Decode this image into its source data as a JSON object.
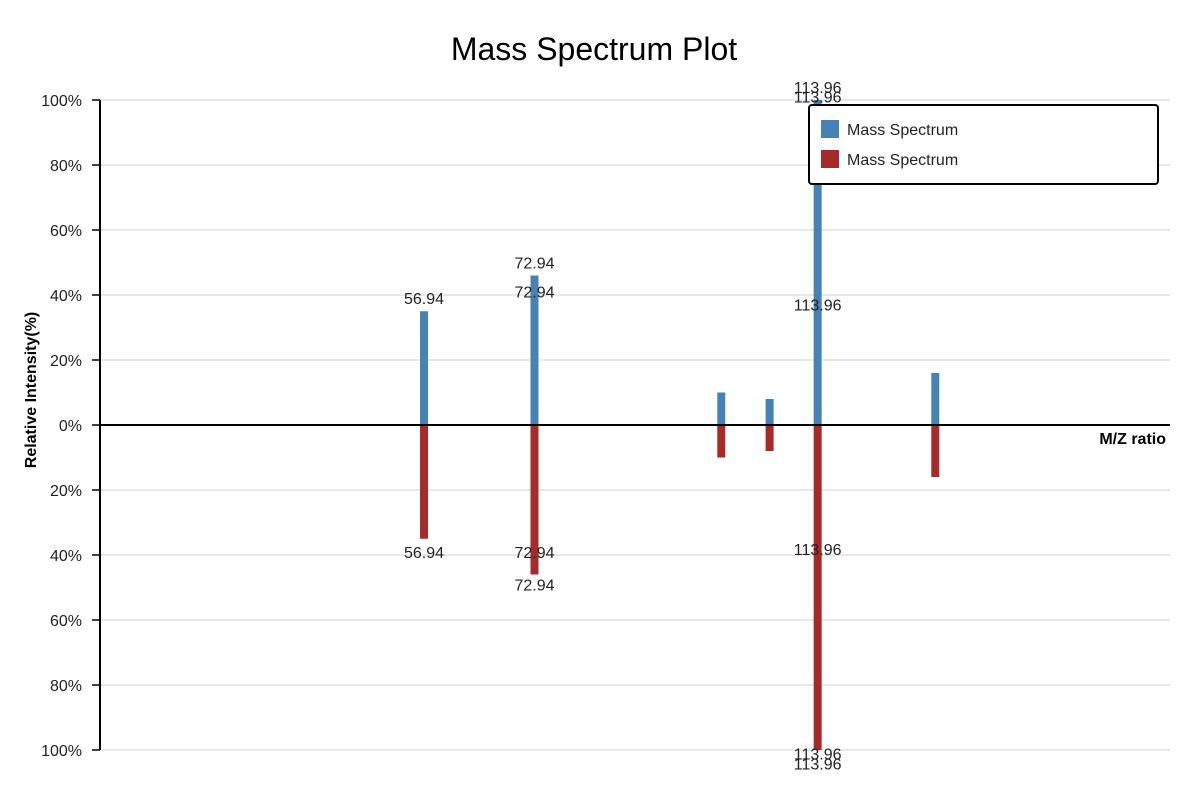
{
  "chart_data": {
    "type": "bar",
    "title": "Mass Spectrum Plot",
    "xlabel": "M/Z ratio",
    "ylabel": "Relative Intensity(%)",
    "ylim": [
      -100,
      100
    ],
    "y_ticks": [
      "100%",
      "80%",
      "60%",
      "40%",
      "20%",
      "0%",
      "20%",
      "40%",
      "60%",
      "80%",
      "100%"
    ],
    "y_tick_values": [
      100,
      80,
      60,
      40,
      20,
      0,
      -20,
      -40,
      -60,
      -80,
      -100
    ],
    "x_range": [
      10,
      165
    ],
    "grid": true,
    "legend_position": "top-right",
    "colors": {
      "up": "#4682b4",
      "down": "#a52a2a"
    },
    "series": [
      {
        "name": "Mass Spectrum",
        "direction": "up",
        "color": "#4682b4",
        "points": [
          {
            "x": 56.94,
            "y": 35
          },
          {
            "x": 72.94,
            "y": 46
          },
          {
            "x": 100.0,
            "y": 10
          },
          {
            "x": 107.0,
            "y": 8
          },
          {
            "x": 113.96,
            "y": 100
          },
          {
            "x": 131.0,
            "y": 16
          }
        ]
      },
      {
        "name": "Mass Spectrum",
        "direction": "down",
        "color": "#a52a2a",
        "points": [
          {
            "x": 56.94,
            "y": -35
          },
          {
            "x": 72.94,
            "y": -46
          },
          {
            "x": 100.0,
            "y": -10
          },
          {
            "x": 107.0,
            "y": -8
          },
          {
            "x": 113.96,
            "y": -100
          },
          {
            "x": 131.0,
            "y": -16
          }
        ]
      }
    ],
    "annotations": [
      {
        "text": "56.94",
        "x": 56.94,
        "y": 36,
        "side": "above"
      },
      {
        "text": "56.94",
        "x": 56.94,
        "y": -36,
        "side": "below"
      },
      {
        "text": "72.94",
        "x": 72.94,
        "y": 47,
        "side": "above"
      },
      {
        "text": "72.94",
        "x": 72.94,
        "y": 38,
        "side": "above"
      },
      {
        "text": "72.94",
        "x": 72.94,
        "y": -36,
        "side": "below"
      },
      {
        "text": "72.94",
        "x": 72.94,
        "y": -46,
        "side": "below"
      },
      {
        "text": "113.96",
        "x": 113.96,
        "y": 101,
        "side": "above"
      },
      {
        "text": "113.96",
        "x": 113.96,
        "y": 98,
        "side": "above"
      },
      {
        "text": "113.96",
        "x": 113.96,
        "y": 34,
        "side": "above"
      },
      {
        "text": "113.96",
        "x": 113.96,
        "y": -35,
        "side": "below"
      },
      {
        "text": "113.96",
        "x": 113.96,
        "y": -98,
        "side": "below"
      },
      {
        "text": "113.96",
        "x": 113.96,
        "y": -101,
        "side": "below"
      }
    ]
  }
}
